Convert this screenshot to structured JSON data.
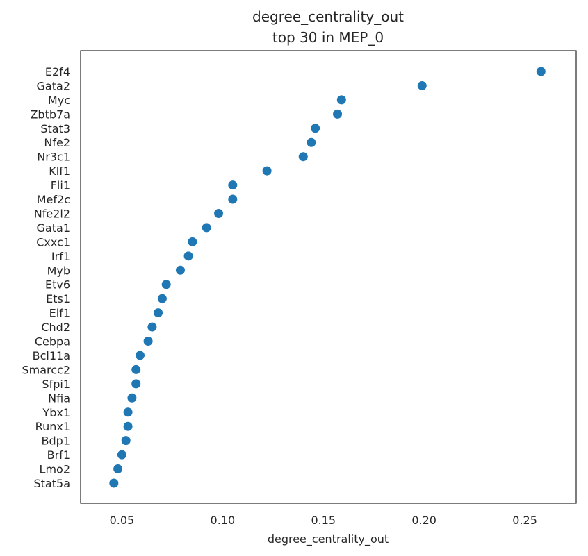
{
  "chart_data": {
    "type": "scatter",
    "title": "degree_centrality_out",
    "subtitle": "top 30 in MEP_0",
    "xlabel": "degree_centrality_out",
    "ylabel": "",
    "xlim": [
      0.0295,
      0.2755
    ],
    "xticks": [
      0.05,
      0.1,
      0.15,
      0.2,
      0.25
    ],
    "xtick_labels": [
      "0.05",
      "0.10",
      "0.15",
      "0.20",
      "0.25"
    ],
    "grid": false,
    "marker_color": "#1f77b4",
    "categories": [
      "E2f4",
      "Gata2",
      "Myc",
      "Zbtb7a",
      "Stat3",
      "Nfe2",
      "Nr3c1",
      "Klf1",
      "Fli1",
      "Mef2c",
      "Nfe2l2",
      "Gata1",
      "Cxxc1",
      "Irf1",
      "Myb",
      "Etv6",
      "Ets1",
      "Elf1",
      "Chd2",
      "Cebpa",
      "Bcl11a",
      "Smarcc2",
      "Sfpi1",
      "Nfia",
      "Ybx1",
      "Runx1",
      "Bdp1",
      "Brf1",
      "Lmo2",
      "Stat5a"
    ],
    "values": [
      0.258,
      0.199,
      0.159,
      0.157,
      0.146,
      0.144,
      0.14,
      0.122,
      0.105,
      0.105,
      0.098,
      0.092,
      0.085,
      0.083,
      0.079,
      0.072,
      0.07,
      0.068,
      0.065,
      0.063,
      0.059,
      0.057,
      0.057,
      0.055,
      0.053,
      0.053,
      0.052,
      0.05,
      0.048,
      0.046
    ]
  }
}
